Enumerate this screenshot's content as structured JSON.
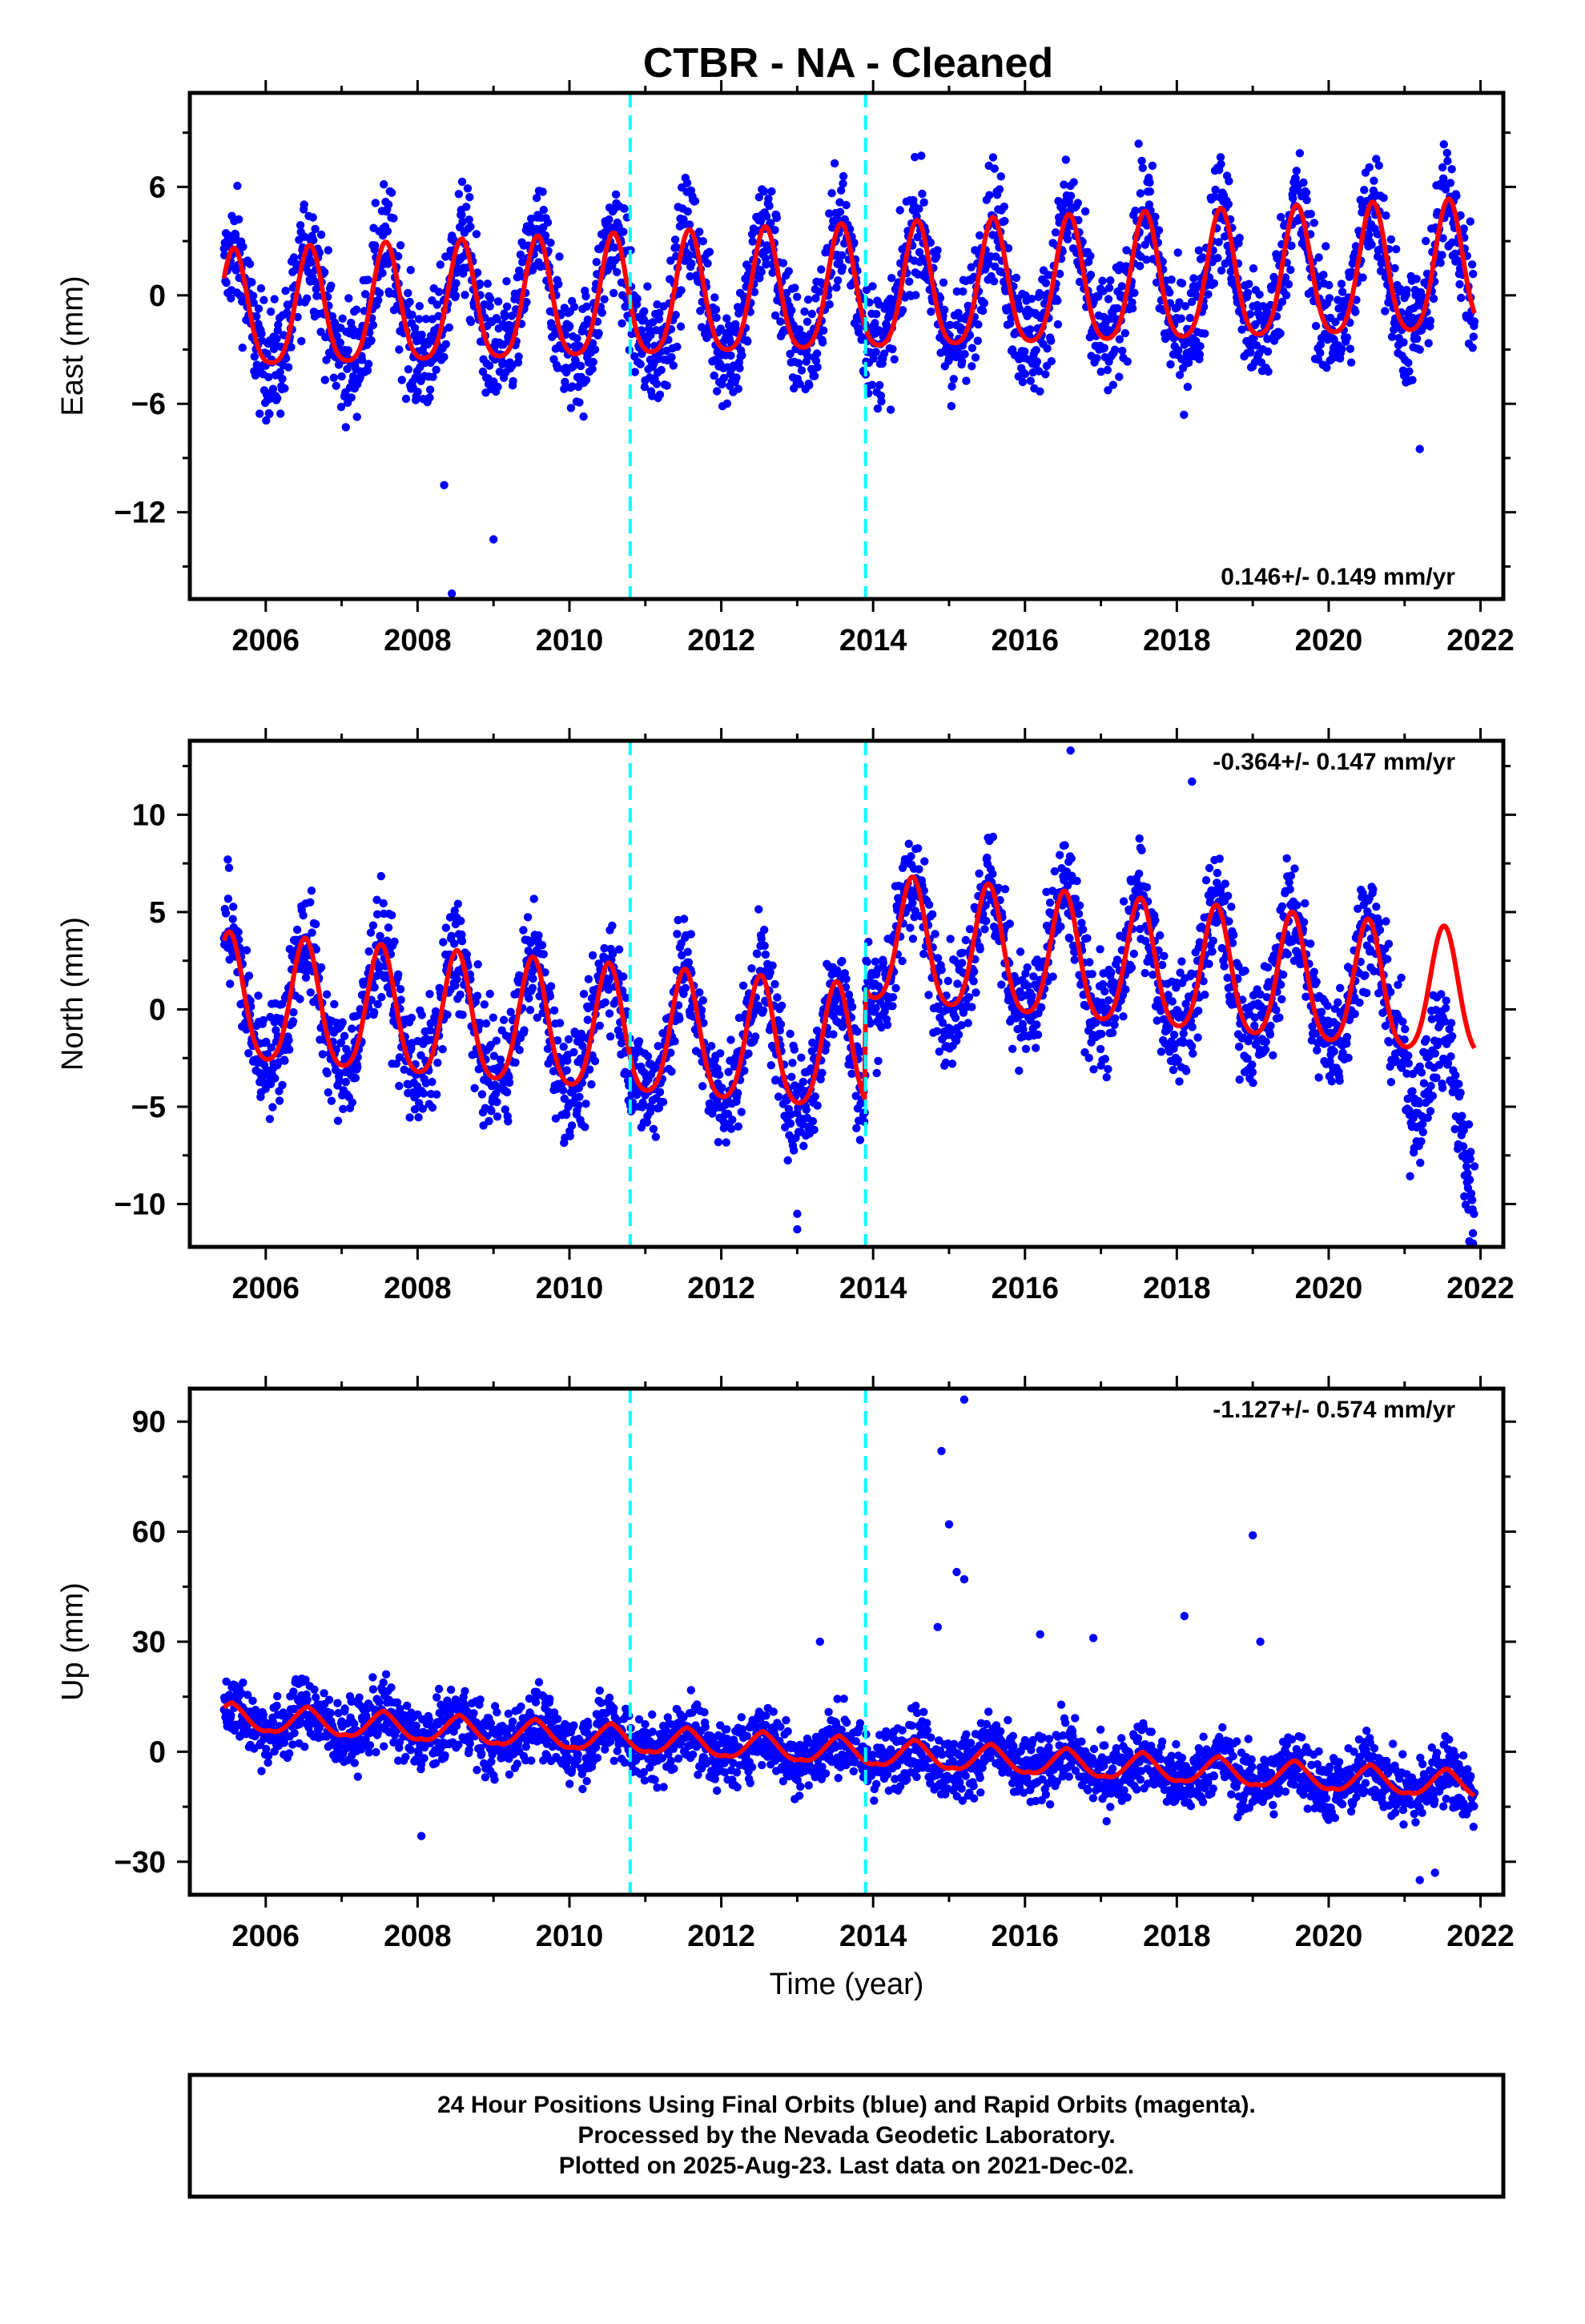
{
  "page_title": "CTBR  - NA - Cleaned",
  "colors": {
    "final_orbits": "#0000ff",
    "model_fit": "#ff0000",
    "offset_marker": "#00ffff",
    "frame": "#000000"
  },
  "footer": {
    "line1": "24 Hour Positions Using Final Orbits (blue) and Rapid Orbits (magenta).",
    "line2": "Processed by the Nevada Geodetic Laboratory.",
    "line3": "Plotted on 2025-Aug-23. Last data on 2021-Dec-02."
  },
  "chart_data": [
    {
      "type": "scatter",
      "panel": "east",
      "title": "",
      "xlabel": "",
      "ylabel": "East (mm)",
      "xlim": [
        2005.0,
        2022.3
      ],
      "ylim": [
        -16.8,
        11.2
      ],
      "x_ticks": [
        2006,
        2008,
        2010,
        2012,
        2014,
        2016,
        2018,
        2020,
        2022
      ],
      "y_ticks": [
        -12,
        -6,
        0,
        6
      ],
      "grid": false,
      "rate_label": "0.146+/- 0.149 mm/yr",
      "rate_label_position": "bottom-right",
      "offset_markers": [
        2010.8,
        2013.9
      ],
      "data_span": [
        2005.45,
        2021.92
      ],
      "model": {
        "trend_mm_per_yr": 0.146,
        "annual_amplitude_start": 3.2,
        "annual_amplitude_end": 3.6,
        "annual_peak_phase_yr": 0.58,
        "scatter_mm": 1.6
      },
      "series": [
        {
          "name": "Final Orbits (blue)",
          "kind": "points",
          "color": "#0000ff"
        },
        {
          "name": "Model fit",
          "kind": "line",
          "color": "#ff0000"
        }
      ],
      "outliers": [
        [
          2008.35,
          -10.5
        ],
        [
          2008.45,
          -16.5
        ],
        [
          2009.0,
          -13.5
        ],
        [
          2021.2,
          -8.5
        ]
      ]
    },
    {
      "type": "scatter",
      "panel": "north",
      "title": "",
      "xlabel": "",
      "ylabel": "North (mm)",
      "xlim": [
        2005.0,
        2022.3
      ],
      "ylim": [
        -12.2,
        13.8
      ],
      "x_ticks": [
        2006,
        2008,
        2010,
        2012,
        2014,
        2016,
        2018,
        2020,
        2022
      ],
      "y_ticks": [
        -10,
        -5,
        0,
        5,
        10
      ],
      "grid": false,
      "rate_label": "-0.364+/- 0.147 mm/yr",
      "rate_label_position": "top-right",
      "offset_markers": [
        2010.8,
        2013.9
      ],
      "data_span": [
        2005.45,
        2021.92
      ],
      "model": {
        "base_before_offset": 0.3,
        "base_after_offset": 3.3,
        "offset_epoch": 2013.9,
        "trend_mm_per_yr": -0.364,
        "annual_amplitude": 3.2,
        "annual_peak_phase_yr": 0.52,
        "scatter_mm": 1.4
      },
      "series": [
        {
          "name": "Final Orbits (blue)",
          "kind": "points",
          "color": "#0000ff"
        },
        {
          "name": "Model fit",
          "kind": "line",
          "color": "#ff0000"
        }
      ],
      "outliers": [
        [
          2005.5,
          7.7
        ],
        [
          2013.0,
          -10.5
        ],
        [
          2013.0,
          -11.3
        ],
        [
          2016.6,
          13.3
        ],
        [
          2018.2,
          11.7
        ],
        [
          2021.9,
          -11.5
        ]
      ]
    },
    {
      "type": "scatter",
      "panel": "up",
      "title": "",
      "xlabel": "Time (year)",
      "ylabel": "Up (mm)",
      "xlim": [
        2005.0,
        2022.3
      ],
      "ylim": [
        -39,
        99
      ],
      "x_ticks": [
        2006,
        2008,
        2010,
        2012,
        2014,
        2016,
        2018,
        2020,
        2022
      ],
      "y_ticks": [
        -30,
        0,
        30,
        60,
        90
      ],
      "grid": false,
      "rate_label": "-1.127+/- 0.574 mm/yr",
      "rate_label_position": "top-right",
      "offset_markers": [
        2010.8,
        2013.9
      ],
      "data_span": [
        2005.45,
        2021.92
      ],
      "model": {
        "base_mm": 10.0,
        "trend_mm_per_yr": -1.127,
        "annual_amplitude": 3.5,
        "annual_peak_phase_yr": 0.55,
        "scatter_mm": 4.5
      },
      "series": [
        {
          "name": "Final Orbits (blue)",
          "kind": "points",
          "color": "#0000ff"
        },
        {
          "name": "Model fit",
          "kind": "line",
          "color": "#ff0000"
        }
      ],
      "outliers": [
        [
          2014.9,
          82
        ],
        [
          2015.0,
          62
        ],
        [
          2015.1,
          49
        ],
        [
          2015.2,
          47
        ],
        [
          2015.2,
          96
        ],
        [
          2014.85,
          34
        ],
        [
          2013.3,
          30
        ],
        [
          2016.2,
          32
        ],
        [
          2016.9,
          31
        ],
        [
          2018.1,
          37
        ],
        [
          2019.0,
          59
        ],
        [
          2019.1,
          30
        ],
        [
          2008.05,
          -23
        ],
        [
          2021.2,
          -35
        ],
        [
          2021.4,
          -33
        ]
      ]
    }
  ]
}
